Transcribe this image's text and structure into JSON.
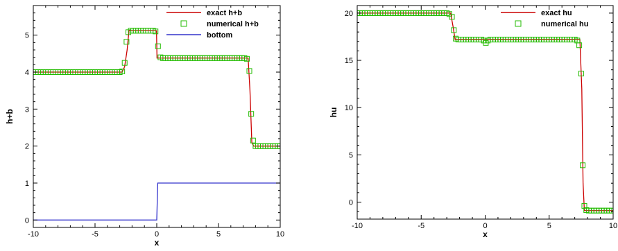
{
  "chart_data": [
    {
      "type": "line",
      "title": "",
      "xlabel": "x",
      "ylabel": "h+b",
      "xlim": [
        -10,
        10
      ],
      "ylim": [
        -0.2,
        5.8
      ],
      "x_ticks": [
        -10,
        -5,
        0,
        5,
        10
      ],
      "y_ticks": [
        0,
        1,
        2,
        3,
        4,
        5
      ],
      "grid": false,
      "legend_position": "top-right",
      "series": [
        {
          "name": "exact h+b",
          "kind": "line",
          "color": "#cc0000",
          "points": [
            [
              -10,
              4.0
            ],
            [
              -2.8,
              4.0
            ],
            [
              -2.6,
              4.15
            ],
            [
              -2.4,
              4.6
            ],
            [
              -2.25,
              5.12
            ],
            [
              -0.02,
              5.12
            ],
            [
              0.02,
              4.38
            ],
            [
              7.4,
              4.38
            ],
            [
              7.55,
              3.5
            ],
            [
              7.7,
              2.1
            ],
            [
              7.85,
              2.0
            ],
            [
              10,
              2.0
            ]
          ]
        },
        {
          "name": "numerical h+b",
          "kind": "markers",
          "color": "#22bb00",
          "points": [
            [
              -10,
              4.0
            ],
            [
              -9.8,
              4.0
            ],
            [
              -9.6,
              4.0
            ],
            [
              -9.4,
              4.0
            ],
            [
              -9.2,
              4.0
            ],
            [
              -9.0,
              4.0
            ],
            [
              -8.8,
              4.0
            ],
            [
              -8.6,
              4.0
            ],
            [
              -8.4,
              4.0
            ],
            [
              -8.2,
              4.0
            ],
            [
              -8.0,
              4.0
            ],
            [
              -7.8,
              4.0
            ],
            [
              -7.6,
              4.0
            ],
            [
              -7.4,
              4.0
            ],
            [
              -7.2,
              4.0
            ],
            [
              -7.0,
              4.0
            ],
            [
              -6.8,
              4.0
            ],
            [
              -6.6,
              4.0
            ],
            [
              -6.4,
              4.0
            ],
            [
              -6.2,
              4.0
            ],
            [
              -6.0,
              4.0
            ],
            [
              -5.8,
              4.0
            ],
            [
              -5.6,
              4.0
            ],
            [
              -5.4,
              4.0
            ],
            [
              -5.2,
              4.0
            ],
            [
              -5.0,
              4.0
            ],
            [
              -4.8,
              4.0
            ],
            [
              -4.6,
              4.0
            ],
            [
              -4.4,
              4.0
            ],
            [
              -4.2,
              4.0
            ],
            [
              -4.0,
              4.0
            ],
            [
              -3.8,
              4.0
            ],
            [
              -3.6,
              4.0
            ],
            [
              -3.4,
              4.0
            ],
            [
              -3.2,
              4.0
            ],
            [
              -3.0,
              4.0
            ],
            [
              -2.8,
              4.02
            ],
            [
              -2.6,
              4.25
            ],
            [
              -2.45,
              4.82
            ],
            [
              -2.3,
              5.08
            ],
            [
              -2.1,
              5.12
            ],
            [
              -1.9,
              5.12
            ],
            [
              -1.7,
              5.12
            ],
            [
              -1.5,
              5.12
            ],
            [
              -1.3,
              5.12
            ],
            [
              -1.1,
              5.12
            ],
            [
              -0.9,
              5.12
            ],
            [
              -0.7,
              5.12
            ],
            [
              -0.5,
              5.12
            ],
            [
              -0.3,
              5.12
            ],
            [
              -0.1,
              5.1
            ],
            [
              0.1,
              4.7
            ],
            [
              0.3,
              4.4
            ],
            [
              0.5,
              4.38
            ],
            [
              0.7,
              4.38
            ],
            [
              0.9,
              4.38
            ],
            [
              1.1,
              4.38
            ],
            [
              1.3,
              4.38
            ],
            [
              1.5,
              4.38
            ],
            [
              1.7,
              4.38
            ],
            [
              1.9,
              4.38
            ],
            [
              2.1,
              4.38
            ],
            [
              2.3,
              4.38
            ],
            [
              2.5,
              4.38
            ],
            [
              2.7,
              4.38
            ],
            [
              2.9,
              4.38
            ],
            [
              3.1,
              4.38
            ],
            [
              3.3,
              4.38
            ],
            [
              3.5,
              4.38
            ],
            [
              3.7,
              4.38
            ],
            [
              3.9,
              4.38
            ],
            [
              4.1,
              4.38
            ],
            [
              4.3,
              4.38
            ],
            [
              4.5,
              4.38
            ],
            [
              4.7,
              4.38
            ],
            [
              4.9,
              4.38
            ],
            [
              5.1,
              4.38
            ],
            [
              5.3,
              4.38
            ],
            [
              5.5,
              4.38
            ],
            [
              5.7,
              4.38
            ],
            [
              5.9,
              4.38
            ],
            [
              6.1,
              4.38
            ],
            [
              6.3,
              4.38
            ],
            [
              6.5,
              4.38
            ],
            [
              6.7,
              4.38
            ],
            [
              6.9,
              4.38
            ],
            [
              7.1,
              4.38
            ],
            [
              7.3,
              4.36
            ],
            [
              7.5,
              4.03
            ],
            [
              7.65,
              2.87
            ],
            [
              7.8,
              2.15
            ],
            [
              8.0,
              2.0
            ],
            [
              8.2,
              2.0
            ],
            [
              8.4,
              2.0
            ],
            [
              8.6,
              2.0
            ],
            [
              8.8,
              2.0
            ],
            [
              9.0,
              2.0
            ],
            [
              9.2,
              2.0
            ],
            [
              9.4,
              2.0
            ],
            [
              9.6,
              2.0
            ],
            [
              9.8,
              2.0
            ],
            [
              10,
              2.0
            ]
          ]
        },
        {
          "name": "bottom",
          "kind": "line",
          "color": "#3333cc",
          "points": [
            [
              -10,
              0
            ],
            [
              0,
              0
            ],
            [
              0.08,
              1.0
            ],
            [
              10,
              1.0
            ]
          ]
        }
      ]
    },
    {
      "type": "line",
      "title": "",
      "xlabel": "x",
      "ylabel": "hu",
      "xlim": [
        -10,
        10
      ],
      "ylim": [
        -1.8,
        20.8
      ],
      "x_ticks": [
        -10,
        -5,
        0,
        5,
        10
      ],
      "y_ticks": [
        0,
        5,
        10,
        15,
        20
      ],
      "grid": false,
      "legend_position": "top-right",
      "series": [
        {
          "name": "exact hu",
          "kind": "line",
          "color": "#cc0000",
          "points": [
            [
              -10,
              20.0
            ],
            [
              -2.7,
              20.0
            ],
            [
              -2.5,
              18.5
            ],
            [
              -2.35,
              17.2
            ],
            [
              7.4,
              17.2
            ],
            [
              7.55,
              12.0
            ],
            [
              7.65,
              2.0
            ],
            [
              7.75,
              -0.9
            ],
            [
              10,
              -0.9
            ]
          ]
        },
        {
          "name": "numerical hu",
          "kind": "markers",
          "color": "#22bb00",
          "points": [
            [
              -10,
              20.0
            ],
            [
              -9.8,
              20.0
            ],
            [
              -9.6,
              20.0
            ],
            [
              -9.4,
              20.0
            ],
            [
              -9.2,
              20.0
            ],
            [
              -9.0,
              20.0
            ],
            [
              -8.8,
              20.0
            ],
            [
              -8.6,
              20.0
            ],
            [
              -8.4,
              20.0
            ],
            [
              -8.2,
              20.0
            ],
            [
              -8.0,
              20.0
            ],
            [
              -7.8,
              20.0
            ],
            [
              -7.6,
              20.0
            ],
            [
              -7.4,
              20.0
            ],
            [
              -7.2,
              20.0
            ],
            [
              -7.0,
              20.0
            ],
            [
              -6.8,
              20.0
            ],
            [
              -6.6,
              20.0
            ],
            [
              -6.4,
              20.0
            ],
            [
              -6.2,
              20.0
            ],
            [
              -6.0,
              20.0
            ],
            [
              -5.8,
              20.0
            ],
            [
              -5.6,
              20.0
            ],
            [
              -5.4,
              20.0
            ],
            [
              -5.2,
              20.0
            ],
            [
              -5.0,
              20.0
            ],
            [
              -4.8,
              20.0
            ],
            [
              -4.6,
              20.0
            ],
            [
              -4.4,
              20.0
            ],
            [
              -4.2,
              20.0
            ],
            [
              -4.0,
              20.0
            ],
            [
              -3.8,
              20.0
            ],
            [
              -3.6,
              20.0
            ],
            [
              -3.4,
              20.0
            ],
            [
              -3.2,
              20.0
            ],
            [
              -3.0,
              20.0
            ],
            [
              -2.8,
              19.9
            ],
            [
              -2.6,
              19.6
            ],
            [
              -2.45,
              18.2
            ],
            [
              -2.3,
              17.3
            ],
            [
              -2.1,
              17.2
            ],
            [
              -1.9,
              17.2
            ],
            [
              -1.7,
              17.2
            ],
            [
              -1.5,
              17.2
            ],
            [
              -1.3,
              17.2
            ],
            [
              -1.1,
              17.2
            ],
            [
              -0.9,
              17.2
            ],
            [
              -0.7,
              17.2
            ],
            [
              -0.5,
              17.2
            ],
            [
              -0.3,
              17.2
            ],
            [
              -0.1,
              17.1
            ],
            [
              0.05,
              16.85
            ],
            [
              0.2,
              17.1
            ],
            [
              0.4,
              17.2
            ],
            [
              0.6,
              17.2
            ],
            [
              0.8,
              17.2
            ],
            [
              1.0,
              17.2
            ],
            [
              1.2,
              17.2
            ],
            [
              1.4,
              17.2
            ],
            [
              1.6,
              17.2
            ],
            [
              1.8,
              17.2
            ],
            [
              2.0,
              17.2
            ],
            [
              2.2,
              17.2
            ],
            [
              2.4,
              17.2
            ],
            [
              2.6,
              17.2
            ],
            [
              2.8,
              17.2
            ],
            [
              3.0,
              17.2
            ],
            [
              3.2,
              17.2
            ],
            [
              3.4,
              17.2
            ],
            [
              3.6,
              17.2
            ],
            [
              3.8,
              17.2
            ],
            [
              4.0,
              17.2
            ],
            [
              4.2,
              17.2
            ],
            [
              4.4,
              17.2
            ],
            [
              4.6,
              17.2
            ],
            [
              4.8,
              17.2
            ],
            [
              5.0,
              17.2
            ],
            [
              5.2,
              17.2
            ],
            [
              5.4,
              17.2
            ],
            [
              5.6,
              17.2
            ],
            [
              5.8,
              17.2
            ],
            [
              6.0,
              17.2
            ],
            [
              6.2,
              17.2
            ],
            [
              6.4,
              17.2
            ],
            [
              6.6,
              17.2
            ],
            [
              6.8,
              17.2
            ],
            [
              7.0,
              17.2
            ],
            [
              7.2,
              17.1
            ],
            [
              7.35,
              16.6
            ],
            [
              7.5,
              13.6
            ],
            [
              7.62,
              3.9
            ],
            [
              7.75,
              -0.4
            ],
            [
              7.9,
              -0.85
            ],
            [
              8.1,
              -0.9
            ],
            [
              8.3,
              -0.9
            ],
            [
              8.5,
              -0.9
            ],
            [
              8.7,
              -0.9
            ],
            [
              8.9,
              -0.9
            ],
            [
              9.1,
              -0.9
            ],
            [
              9.3,
              -0.9
            ],
            [
              9.5,
              -0.9
            ],
            [
              9.7,
              -0.9
            ],
            [
              9.9,
              -0.9
            ]
          ]
        }
      ]
    }
  ]
}
